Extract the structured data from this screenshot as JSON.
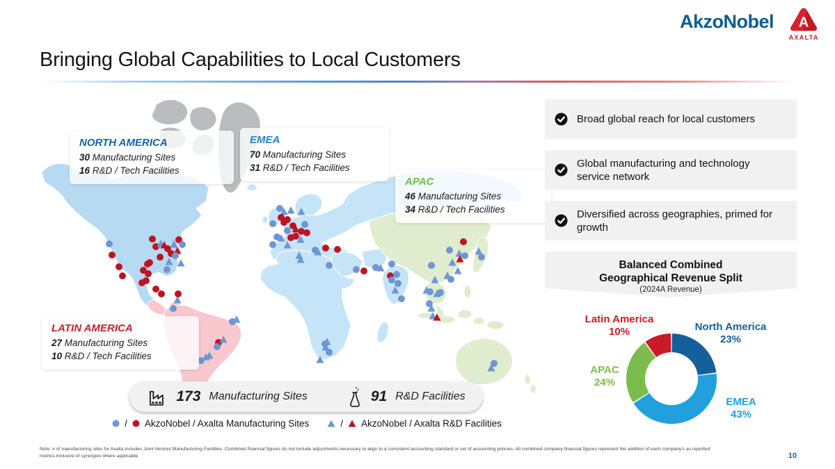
{
  "header": {
    "akzonobel_wordmark": "AkzoNobel",
    "axalta_wordmark": "AXALTA",
    "akzonobel_color": "#0b5d90",
    "axalta_color": "#cb1f2a"
  },
  "title": "Bringing Global Capabilities to Local Customers",
  "map": {
    "regions": [
      {
        "name": "NORTH AMERICA",
        "color": "#1b5fa6",
        "mfg_value": "30",
        "mfg_label": "Manufacturing Sites",
        "rnd_value": "16",
        "rnd_label": "R&D / Tech Facilities"
      },
      {
        "name": "EMEA",
        "color": "#2186c8",
        "mfg_value": "70",
        "mfg_label": "Manufacturing Sites",
        "rnd_value": "31",
        "rnd_label": "R&D / Tech Facilities"
      },
      {
        "name": "APAC",
        "color": "#6abe45",
        "mfg_value": "46",
        "mfg_label": "Manufacturing Sites",
        "rnd_value": "34",
        "rnd_label": "R&D / Tech Facilities"
      },
      {
        "name": "LATIN AMERICA",
        "color": "#c2202e",
        "mfg_value": "27",
        "mfg_label": "Manufacturing Sites",
        "rnd_value": "10",
        "rnd_label": "R&D / Tech Facilities"
      }
    ],
    "marker_colors": {
      "akzonobel": "#6f96d4",
      "axalta": "#bb1522"
    },
    "markers": [
      [
        "c",
        "b",
        157,
        351
      ],
      [
        "c",
        "r",
        161,
        367
      ],
      [
        "c",
        "r",
        171,
        384
      ],
      [
        "c",
        "r",
        176,
        397
      ],
      [
        "c",
        "r",
        219,
        344
      ],
      [
        "c",
        "r",
        224,
        355
      ],
      [
        "t",
        "b",
        231,
        351
      ],
      [
        "t",
        "r",
        236,
        353
      ],
      [
        "c",
        "r",
        241,
        358
      ],
      [
        "t",
        "b",
        250,
        352
      ],
      [
        "c",
        "r",
        257,
        345
      ],
      [
        "c",
        "b",
        262,
        352
      ],
      [
        "c",
        "r",
        246,
        365
      ],
      [
        "t",
        "r",
        255,
        361
      ],
      [
        "c",
        "b",
        252,
        368
      ],
      [
        "t",
        "b",
        243,
        377
      ],
      [
        "c",
        "r",
        230,
        370
      ],
      [
        "c",
        "r",
        215,
        378
      ],
      [
        "c",
        "b",
        240,
        388
      ],
      [
        "c",
        "r",
        212,
        380
      ],
      [
        "t",
        "b",
        260,
        379
      ],
      [
        "c",
        "r",
        206,
        389
      ],
      [
        "c",
        "r",
        213,
        394
      ],
      [
        "c",
        "r",
        204,
        407
      ],
      [
        "c",
        "r",
        210,
        404
      ],
      [
        "c",
        "r",
        224,
        416
      ],
      [
        "c",
        "r",
        232,
        423
      ],
      [
        "t",
        "b",
        255,
        432
      ],
      [
        "c",
        "r",
        256,
        423
      ],
      [
        "c",
        "b",
        249,
        444
      ],
      [
        "t",
        "b",
        340,
        460
      ],
      [
        "c",
        "b",
        334,
        463
      ],
      [
        "c",
        "r",
        314,
        493
      ],
      [
        "t",
        "b",
        321,
        489
      ],
      [
        "c",
        "b",
        312,
        499
      ],
      [
        "t",
        "b",
        296,
        514
      ],
      [
        "t",
        "b",
        301,
        512
      ],
      [
        "c",
        "b",
        289,
        519
      ],
      [
        "c",
        "b",
        392,
        322
      ],
      [
        "c",
        "b",
        402,
        300
      ],
      [
        "t",
        "b",
        408,
        305
      ],
      [
        "c",
        "r",
        404,
        313
      ],
      [
        "c",
        "r",
        408,
        320
      ],
      [
        "c",
        "r",
        413,
        316
      ],
      [
        "t",
        "b",
        418,
        303
      ],
      [
        "t",
        "b",
        433,
        305
      ],
      [
        "c",
        "b",
        438,
        323
      ],
      [
        "c",
        "r",
        421,
        325
      ],
      [
        "t",
        "r",
        425,
        330
      ],
      [
        "c",
        "b",
        413,
        332
      ],
      [
        "c",
        "r",
        433,
        333
      ],
      [
        "c",
        "r",
        441,
        335
      ],
      [
        "c",
        "r",
        418,
        342
      ],
      [
        "c",
        "r",
        425,
        340
      ],
      [
        "t",
        "b",
        432,
        345
      ],
      [
        "c",
        "b",
        398,
        341
      ],
      [
        "t",
        "b",
        404,
        343
      ],
      [
        "c",
        "b",
        392,
        352
      ],
      [
        "t",
        "b",
        413,
        353
      ],
      [
        "t",
        "b",
        430,
        368
      ],
      [
        "t",
        "b",
        432,
        374
      ],
      [
        "c",
        "b",
        453,
        360
      ],
      [
        "t",
        "b",
        457,
        363
      ],
      [
        "c",
        "r",
        468,
        357
      ],
      [
        "c",
        "r",
        485,
        359
      ],
      [
        "c",
        "b",
        473,
        382
      ],
      [
        "c",
        "b",
        512,
        388
      ],
      [
        "c",
        "r",
        523,
        390
      ],
      [
        "c",
        "b",
        540,
        385
      ],
      [
        "t",
        "b",
        547,
        386
      ],
      [
        "c",
        "b",
        563,
        380
      ],
      [
        "c",
        "r",
        561,
        397
      ],
      [
        "c",
        "b",
        570,
        395
      ],
      [
        "c",
        "b",
        563,
        403
      ],
      [
        "c",
        "b",
        572,
        408
      ],
      [
        "t",
        "b",
        568,
        418
      ],
      [
        "c",
        "b",
        577,
        430
      ],
      [
        "c",
        "r",
        666,
        348
      ],
      [
        "c",
        "b",
        646,
        360
      ],
      [
        "t",
        "b",
        660,
        365
      ],
      [
        "c",
        "b",
        668,
        368
      ],
      [
        "t",
        "r",
        661,
        373
      ],
      [
        "t",
        "b",
        650,
        378
      ],
      [
        "t",
        "b",
        658,
        390
      ],
      [
        "t",
        "b",
        643,
        397
      ],
      [
        "c",
        "b",
        648,
        402
      ],
      [
        "c",
        "b",
        620,
        382
      ],
      [
        "t",
        "b",
        625,
        403
      ],
      [
        "t",
        "b",
        688,
        362
      ],
      [
        "c",
        "b",
        692,
        370
      ],
      [
        "t",
        "b",
        613,
        418
      ],
      [
        "c",
        "b",
        618,
        420
      ],
      [
        "t",
        "b",
        628,
        423
      ],
      [
        "c",
        "b",
        633,
        421
      ],
      [
        "c",
        "b",
        617,
        437
      ],
      [
        "t",
        "b",
        620,
        444
      ],
      [
        "t",
        "b",
        622,
        455
      ],
      [
        "t",
        "r",
        628,
        457
      ],
      [
        "t",
        "b",
        470,
        492
      ],
      [
        "c",
        "b",
        467,
        495
      ],
      [
        "t",
        "b",
        468,
        500
      ],
      [
        "c",
        "b",
        473,
        507
      ],
      [
        "t",
        "b",
        460,
        518
      ],
      [
        "c",
        "b",
        710,
        523
      ],
      [
        "t",
        "b",
        706,
        530
      ]
    ]
  },
  "totals": {
    "mfg_value": "173",
    "mfg_label": "Manufacturing Sites",
    "rnd_value": "91",
    "rnd_label": "R&D Facilities"
  },
  "legend": {
    "separator": "/",
    "manufacturing_label": "AkzoNobel / Axalta Manufacturing Sites",
    "rnd_label": "AkzoNobel / Axalta R&D Facilities"
  },
  "benefits": [
    {
      "text": "Broad global reach for local customers"
    },
    {
      "text": "Global manufacturing and technology service network"
    },
    {
      "text": "Diversified across geographies, primed for growth"
    }
  ],
  "chart_data": {
    "type": "pie",
    "donut": true,
    "title": "Balanced Combined Geographical Revenue Split",
    "subtitle": "(2024A Revenue)",
    "categories": [
      "North America",
      "EMEA",
      "APAC",
      "Latin America"
    ],
    "values": [
      23,
      43,
      24,
      10
    ],
    "labels": [
      "23%",
      "43%",
      "24%",
      "10%"
    ],
    "colors": [
      "#155f9a",
      "#22a0dd",
      "#7cbc4c",
      "#cb1a27"
    ],
    "start_angle_deg": 0,
    "direction": "clockwise",
    "legend_position": "outside-labels"
  },
  "footer": {
    "note": "Note: # of manufacturing sites for Axalta includes Joint Venture Manufacturing Facilities. Combined financial figures do not include adjustments necessary to align to a consistent accounting standard or set of accounting policies. All combined company financial figures represent the addition of each company's as reported metrics inclusive of synergies where applicable",
    "page_number": "10"
  }
}
